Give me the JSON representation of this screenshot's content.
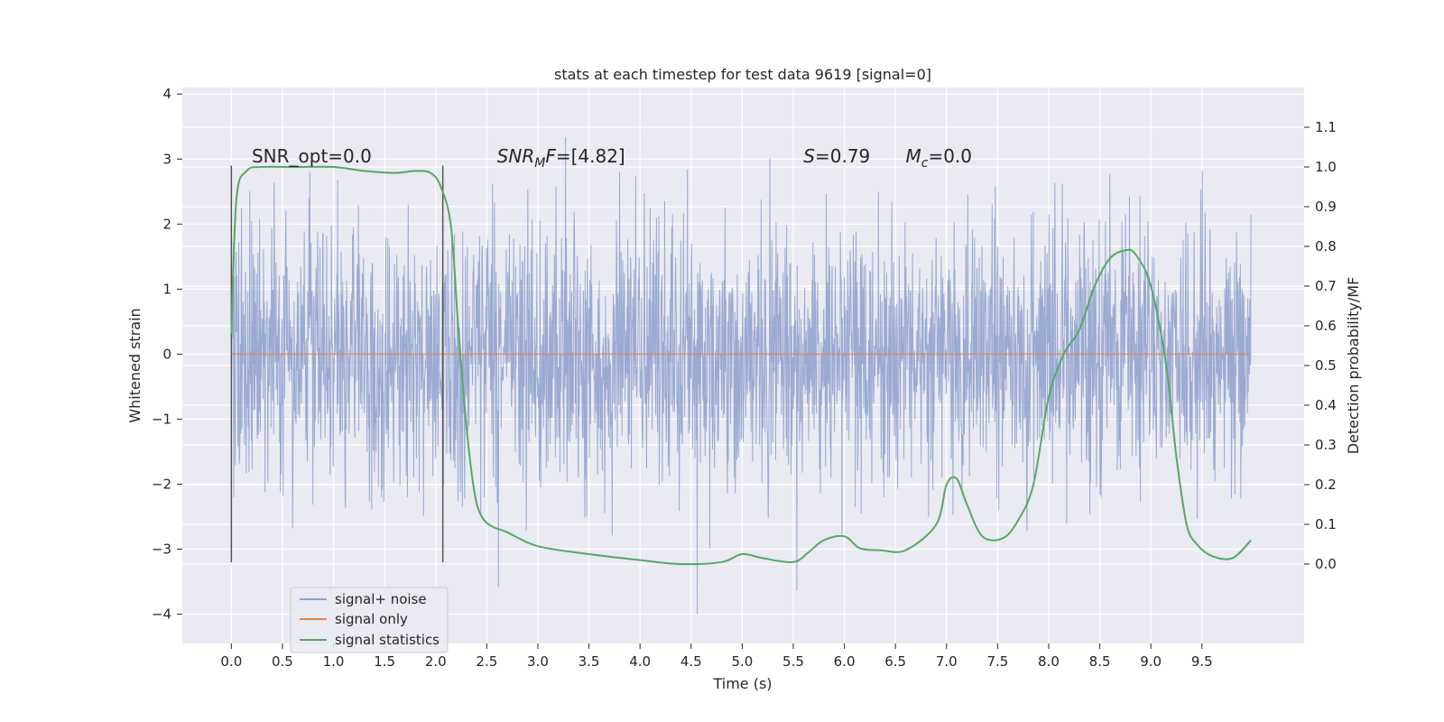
{
  "chart_data": {
    "type": "line",
    "title": "stats at each timestep for test data 9619 [signal=0]",
    "xlabel": "Time (s)",
    "ylabel": "Whitened strain",
    "ylabel_right": "Detection probability/MF",
    "xlim": [
      -0.48,
      10.5
    ],
    "ylim": [
      -4.45,
      4.1
    ],
    "ylim_right": [
      -0.2,
      1.2
    ],
    "x_ticks": [
      "0.0",
      "0.5",
      "1.0",
      "1.5",
      "2.0",
      "2.5",
      "3.0",
      "3.5",
      "4.0",
      "4.5",
      "5.0",
      "5.5",
      "6.0",
      "6.5",
      "7.0",
      "7.5",
      "8.0",
      "8.5",
      "9.0",
      "9.5"
    ],
    "y_ticks_left": [
      "4",
      "3",
      "2",
      "1",
      "0",
      "−1",
      "−2",
      "−3",
      "−4"
    ],
    "y_ticks_right": [
      "1.1",
      "1.0",
      "0.9",
      "0.8",
      "0.7",
      "0.6",
      "0.5",
      "0.4",
      "0.3",
      "0.2",
      "0.1",
      "0.0"
    ],
    "grid": true,
    "legend_position": "lower-left",
    "annotations": [
      {
        "text": "SNR_opt=0.0",
        "x": 0.2,
        "y": 2.95
      },
      {
        "text": "SNR",
        "sub": "M",
        "tail": "F=[4.82]",
        "italic": true,
        "x": 2.6,
        "y": 2.95
      },
      {
        "text": "S",
        "tail": "=0.79",
        "italic": true,
        "x": 5.6,
        "y": 2.95
      },
      {
        "text": "M",
        "sub": "c",
        "tail": "=0.0",
        "italic": true,
        "x": 6.6,
        "y": 2.95
      }
    ],
    "window_markers": {
      "x": [
        0.0,
        2.07
      ],
      "y_range": [
        -3.2,
        2.9
      ],
      "color": "#555555"
    },
    "series": [
      {
        "name": "signal+ noise",
        "color": "#8c9fcd",
        "axis": "left",
        "x_range": [
          0.0,
          9.98
        ],
        "typical_amplitude": 1.0,
        "peak_range": [
          -4.0,
          3.7
        ]
      },
      {
        "name": "signal only",
        "color": "#dd8452",
        "axis": "left",
        "x": [
          0.0,
          9.98
        ],
        "y": [
          0.0,
          0.0
        ]
      },
      {
        "name": "signal statistics",
        "color": "#55a868",
        "axis": "right",
        "x": [
          0.0,
          0.05,
          0.15,
          0.3,
          0.6,
          1.0,
          1.3,
          1.6,
          1.8,
          1.95,
          2.05,
          2.15,
          2.22,
          2.3,
          2.38,
          2.45,
          2.55,
          2.7,
          3.0,
          3.5,
          4.0,
          4.4,
          4.8,
          5.0,
          5.2,
          5.5,
          5.65,
          5.8,
          6.0,
          6.15,
          6.35,
          6.6,
          6.9,
          7.0,
          7.1,
          7.2,
          7.35,
          7.55,
          7.7,
          7.85,
          8.0,
          8.15,
          8.3,
          8.45,
          8.6,
          8.75,
          8.85,
          9.0,
          9.15,
          9.25,
          9.35,
          9.45,
          9.6,
          9.8,
          9.98
        ],
        "y": [
          0.58,
          0.92,
          0.99,
          1.0,
          1.0,
          1.0,
          0.99,
          0.985,
          0.99,
          0.985,
          0.95,
          0.85,
          0.6,
          0.35,
          0.18,
          0.12,
          0.095,
          0.08,
          0.045,
          0.025,
          0.01,
          0.0,
          0.005,
          0.025,
          0.015,
          0.005,
          0.03,
          0.06,
          0.07,
          0.04,
          0.035,
          0.035,
          0.1,
          0.2,
          0.215,
          0.15,
          0.07,
          0.065,
          0.11,
          0.2,
          0.42,
          0.53,
          0.59,
          0.7,
          0.77,
          0.79,
          0.78,
          0.7,
          0.5,
          0.27,
          0.1,
          0.05,
          0.02,
          0.015,
          0.06
        ]
      }
    ]
  }
}
